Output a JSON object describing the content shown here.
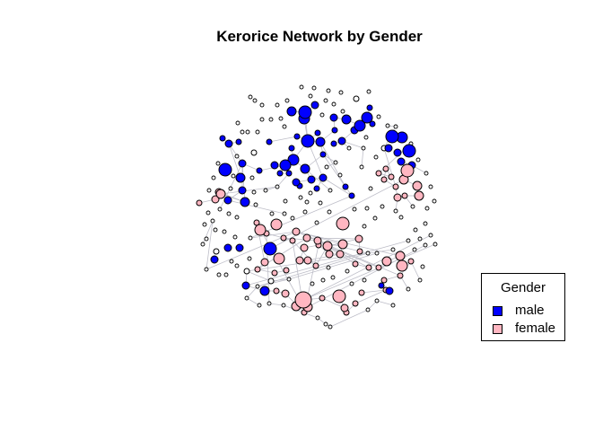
{
  "title": "Kerorice Network by Gender",
  "legend": {
    "title": "Gender",
    "items": [
      {
        "label": "male",
        "color": "#0000FF"
      },
      {
        "label": "female",
        "color": "#FFB6C1"
      }
    ]
  },
  "colors": {
    "edge": "#BEBEC8",
    "node_stroke": "#000000",
    "none": "#FFFFFF"
  }
}
